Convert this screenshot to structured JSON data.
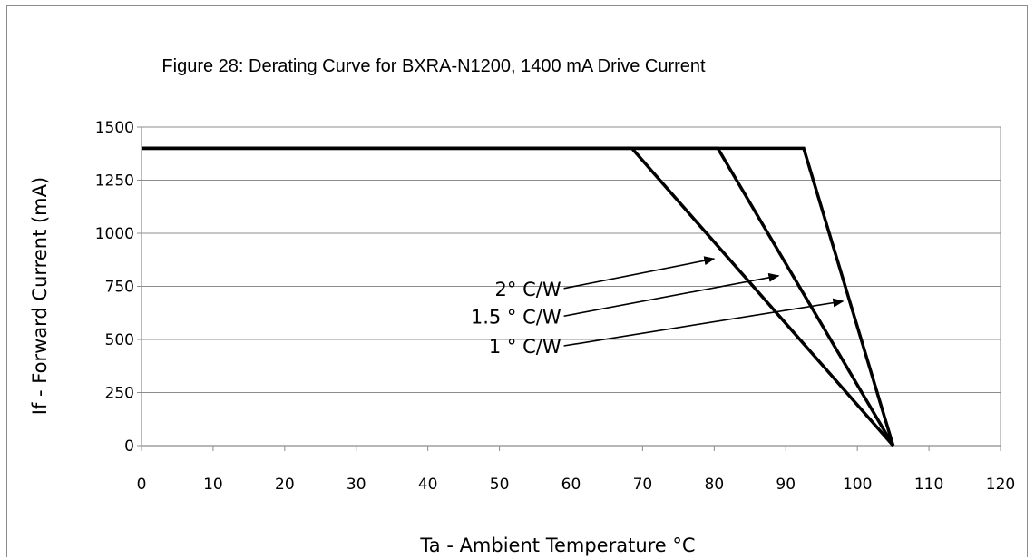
{
  "chart_data": {
    "type": "line",
    "title": "Figure 28:  Derating Curve for BXRA-N1200, 1400 mA Drive Current",
    "xlabel": "Ta - Ambient Temperature °C",
    "ylabel": "If - Forward Current (mA)",
    "xlim": [
      0,
      120
    ],
    "ylim": [
      0,
      1500
    ],
    "x_ticks": [
      0,
      10,
      20,
      30,
      40,
      50,
      60,
      70,
      80,
      90,
      100,
      110,
      120
    ],
    "y_ticks": [
      0,
      250,
      500,
      750,
      1000,
      1250,
      1500
    ],
    "grid": "horizontal",
    "legend": "none",
    "series": [
      {
        "points": [
          [
            0,
            1400
          ],
          [
            68.5,
            1400
          ],
          [
            105,
            0
          ]
        ]
      },
      {
        "points": [
          [
            0,
            1400
          ],
          [
            80.5,
            1400
          ],
          [
            105,
            0
          ]
        ]
      },
      {
        "points": [
          [
            0,
            1400
          ],
          [
            92.5,
            1400
          ],
          [
            105,
            0
          ]
        ]
      }
    ],
    "annotations": [
      {
        "text": "2° C/W",
        "at": [
          59,
          740
        ],
        "arrow_to": [
          80,
          880
        ]
      },
      {
        "text": "1.5 ° C/W",
        "at": [
          59,
          610
        ],
        "arrow_to": [
          89,
          800
        ]
      },
      {
        "text": "1 ° C/W",
        "at": [
          59,
          470
        ],
        "arrow_to": [
          98,
          680
        ]
      }
    ]
  }
}
